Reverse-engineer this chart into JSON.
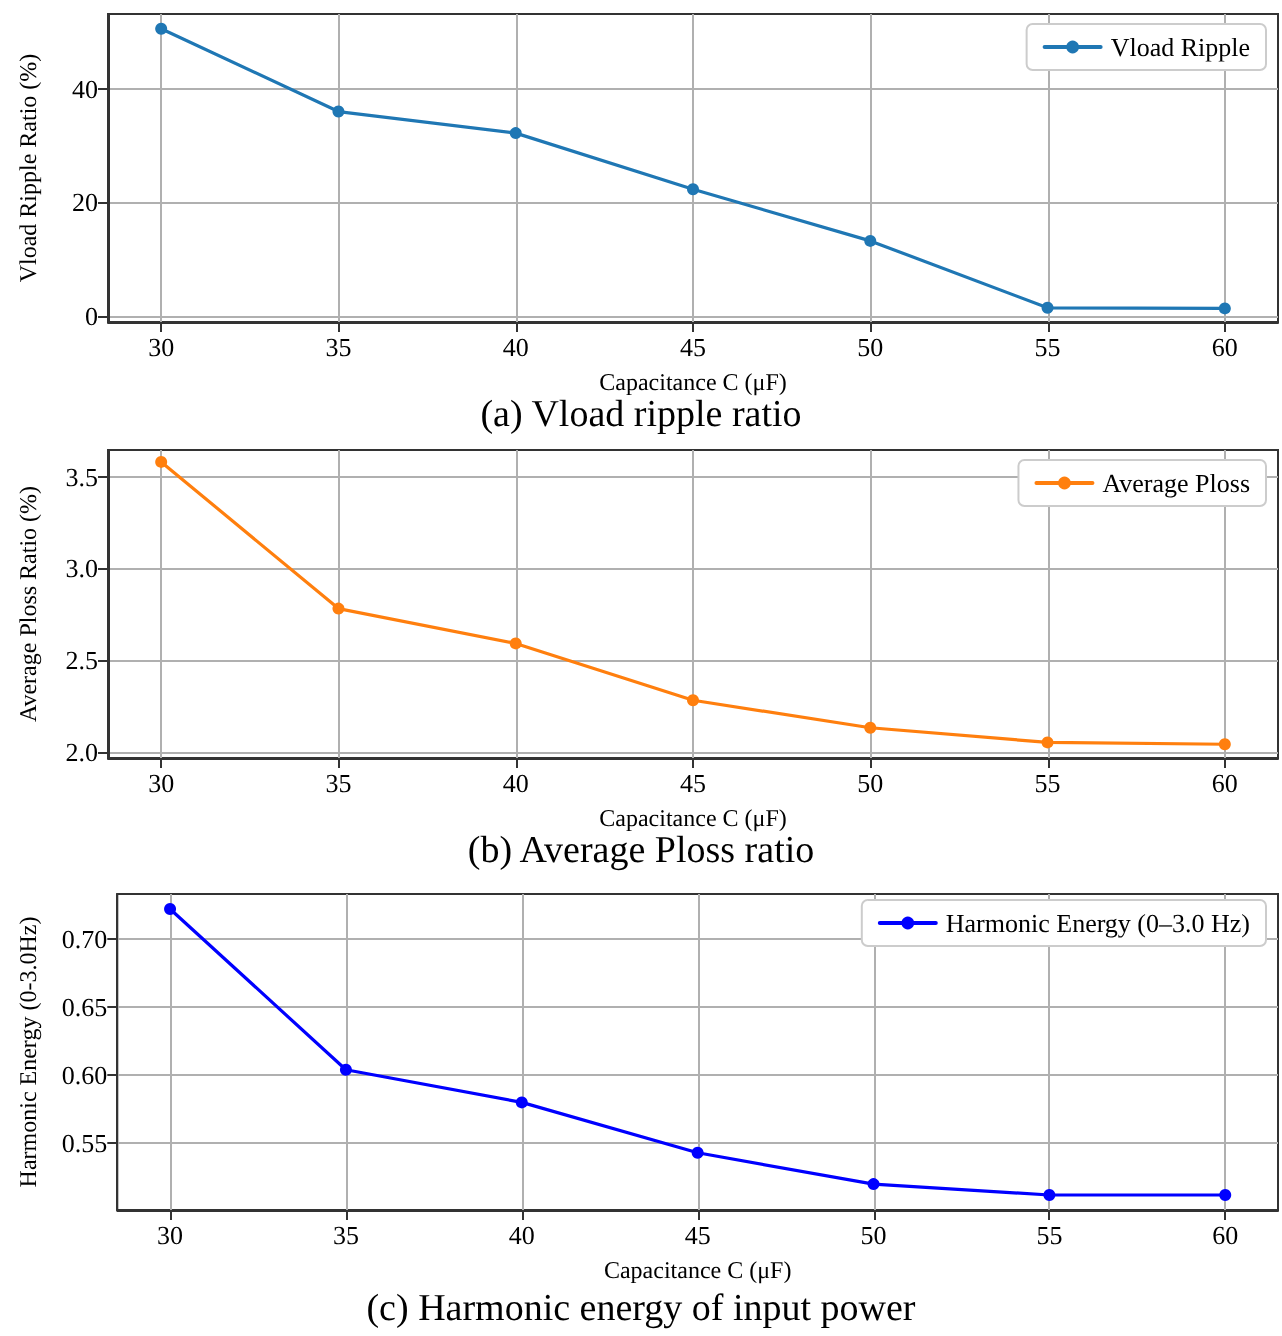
{
  "chart_data": [
    {
      "type": "line",
      "title": "(a) Vload ripple ratio",
      "xlabel": "Capacitance C (μF)",
      "ylabel": "Vload Ripple Ratio (%)",
      "x": [
        30,
        35,
        40,
        45,
        50,
        55,
        60
      ],
      "series": [
        {
          "name": "Vload Ripple",
          "color": "#1f77b4",
          "values": [
            50.6,
            36.0,
            32.2,
            22.3,
            13.2,
            1.4,
            1.3
          ]
        }
      ],
      "xlim": [
        28.5,
        61.5
      ],
      "xticks": [
        30,
        35,
        40,
        45,
        50,
        55,
        60
      ],
      "ylim": [
        -1.1,
        53.2
      ],
      "yticks": [
        0,
        20,
        40
      ],
      "grid": true,
      "legend": "top right",
      "marker": "circle",
      "line_style": "solid"
    },
    {
      "type": "line",
      "title": "(b) Average Ploss ratio",
      "xlabel": "Capacitance C (μF)",
      "ylabel": "Average Ploss Ratio (%)",
      "x": [
        30,
        35,
        40,
        45,
        50,
        55,
        60
      ],
      "series": [
        {
          "name": "Average Ploss",
          "color": "#ff7f0e",
          "values": [
            3.58,
            2.78,
            2.59,
            2.28,
            2.13,
            2.05,
            2.04
          ]
        }
      ],
      "xlim": [
        28.5,
        61.5
      ],
      "xticks": [
        30,
        35,
        40,
        45,
        50,
        55,
        60
      ],
      "ylim": [
        1.965,
        3.645
      ],
      "yticks": [
        {
          "value": 2,
          "label": "2.0"
        },
        2.5,
        {
          "value": 3,
          "label": "3.0"
        },
        3.5
      ],
      "grid": true,
      "legend": "top right",
      "marker": "circle",
      "line_style": "solid"
    },
    {
      "type": "line",
      "title": "(c) Harmonic energy of input power",
      "xlabel": "Capacitance C (μF)",
      "ylabel": "Harmonic Energy (0-3.0Hz)",
      "x": [
        30,
        35,
        40,
        45,
        50,
        55,
        60
      ],
      "series": [
        {
          "name": "Harmonic Energy (0–3.0 Hz)",
          "color": "#0000ff",
          "values": [
            0.722,
            0.604,
            0.58,
            0.543,
            0.52,
            0.512,
            0.512
          ]
        }
      ],
      "xlim": [
        28.5,
        61.5
      ],
      "xticks": [
        30,
        35,
        40,
        45,
        50,
        55,
        60
      ],
      "ylim": [
        0.501,
        0.733
      ],
      "yticks": [
        0.55,
        {
          "value": 0.6,
          "label": "0.60"
        },
        0.65,
        {
          "value": 0.7,
          "label": "0.70"
        }
      ],
      "grid": true,
      "legend": "top right",
      "marker": "circle",
      "line_style": "solid"
    }
  ]
}
